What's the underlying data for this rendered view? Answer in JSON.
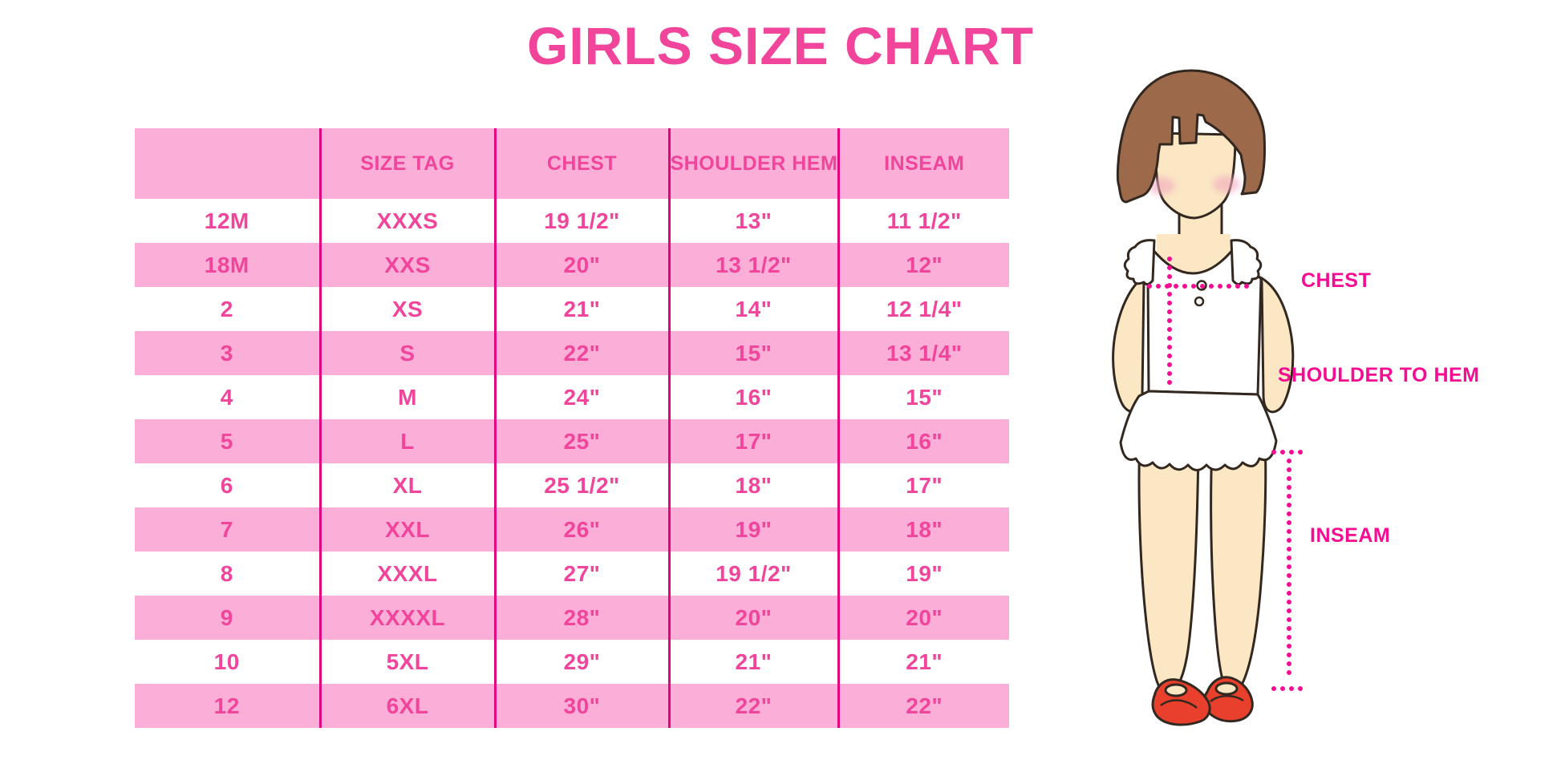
{
  "title": "GIRLS SIZE CHART",
  "chart_data": {
    "type": "table",
    "title": "GIRLS SIZE CHART",
    "columns": [
      "",
      "SIZE TAG",
      "CHEST",
      "SHOULDER HEM",
      "INSEAM"
    ],
    "rows": [
      [
        "12M",
        "XXXS",
        "19 1/2\"",
        "13\"",
        "11 1/2\""
      ],
      [
        "18M",
        "XXS",
        "20\"",
        "13 1/2\"",
        "12\""
      ],
      [
        "2",
        "XS",
        "21\"",
        "14\"",
        "12 1/4\""
      ],
      [
        "3",
        "S",
        "22\"",
        "15\"",
        "13 1/4\""
      ],
      [
        "4",
        "M",
        "24\"",
        "16\"",
        "15\""
      ],
      [
        "5",
        "L",
        "25\"",
        "17\"",
        "16\""
      ],
      [
        "6",
        "XL",
        "25 1/2\"",
        "18\"",
        "17\""
      ],
      [
        "7",
        "XXL",
        "26\"",
        "19\"",
        "18\""
      ],
      [
        "8",
        "XXXL",
        "27\"",
        "19 1/2\"",
        "19\""
      ],
      [
        "9",
        "XXXXL",
        "28\"",
        "20\"",
        "20\""
      ],
      [
        "10",
        "5XL",
        "29\"",
        "21\"",
        "21\""
      ],
      [
        "12",
        "6XL",
        "30\"",
        "22\"",
        "22\""
      ]
    ],
    "layout": {
      "row_striping": "alternating white and pink, header pink",
      "grid": "vertical magenta separators only"
    }
  },
  "figure_labels": {
    "chest": "CHEST",
    "shoulder_to_hem": "SHOULDER TO HEM",
    "inseam": "INSEAM"
  },
  "colors": {
    "accent_pink": "#F1459C",
    "row_pink": "#FBAED8",
    "grid_line_pink": "#E1047F",
    "label_magenta": "#F50C93"
  },
  "illustration": {
    "alt": "Cartoon girl with brown bob haircut, white ruffled sleeveless top and skirt, red shoes, annotated with dotted measurement guides",
    "hair_color": "#9C6A4B",
    "skin_color": "#FBE7C4",
    "shoe_color": "#E8402C",
    "outline_color": "#33281F",
    "garment_color": "#FFFFFF",
    "dotted_guide_color": "#F50C93"
  }
}
